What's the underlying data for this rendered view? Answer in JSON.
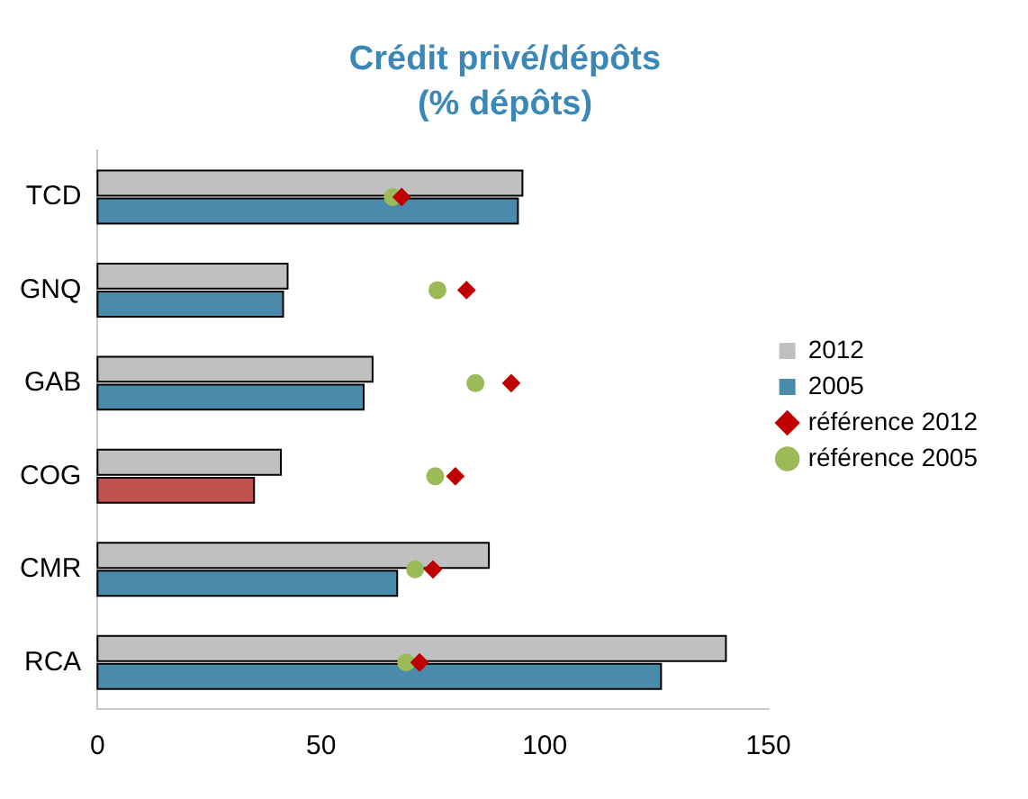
{
  "chart_data": {
    "type": "bar",
    "orientation": "horizontal",
    "title": "Crédit privé/dépôts",
    "subtitle": "(% dépôts)",
    "categories": [
      "TCD",
      "GNQ",
      "GAB",
      "COG",
      "CMR",
      "RCA"
    ],
    "series": [
      {
        "name": "2012",
        "color": "#c0c0c0",
        "values": [
          95,
          42.5,
          61.5,
          41,
          87.5,
          140.5
        ]
      },
      {
        "name": "2005",
        "color": "#4a8aab",
        "colors": [
          "#4a8aab",
          "#4a8aab",
          "#4a8aab",
          "#c0504d",
          "#4a8aab",
          "#4a8aab"
        ],
        "values": [
          94,
          41.5,
          59.5,
          35,
          67,
          126
        ]
      },
      {
        "name": "référence 2012",
        "type": "scatter",
        "marker": "diamond",
        "color": "#c00000",
        "values": [
          68,
          82.5,
          92.5,
          80,
          75,
          72
        ]
      },
      {
        "name": "référence 2005",
        "type": "scatter",
        "marker": "circle",
        "color": "#9bbb59",
        "values": [
          66,
          76,
          84.5,
          75.5,
          71,
          69
        ]
      }
    ],
    "xlim": [
      0,
      150
    ],
    "xticks": [
      0,
      50,
      100,
      150
    ],
    "legend": "right"
  }
}
